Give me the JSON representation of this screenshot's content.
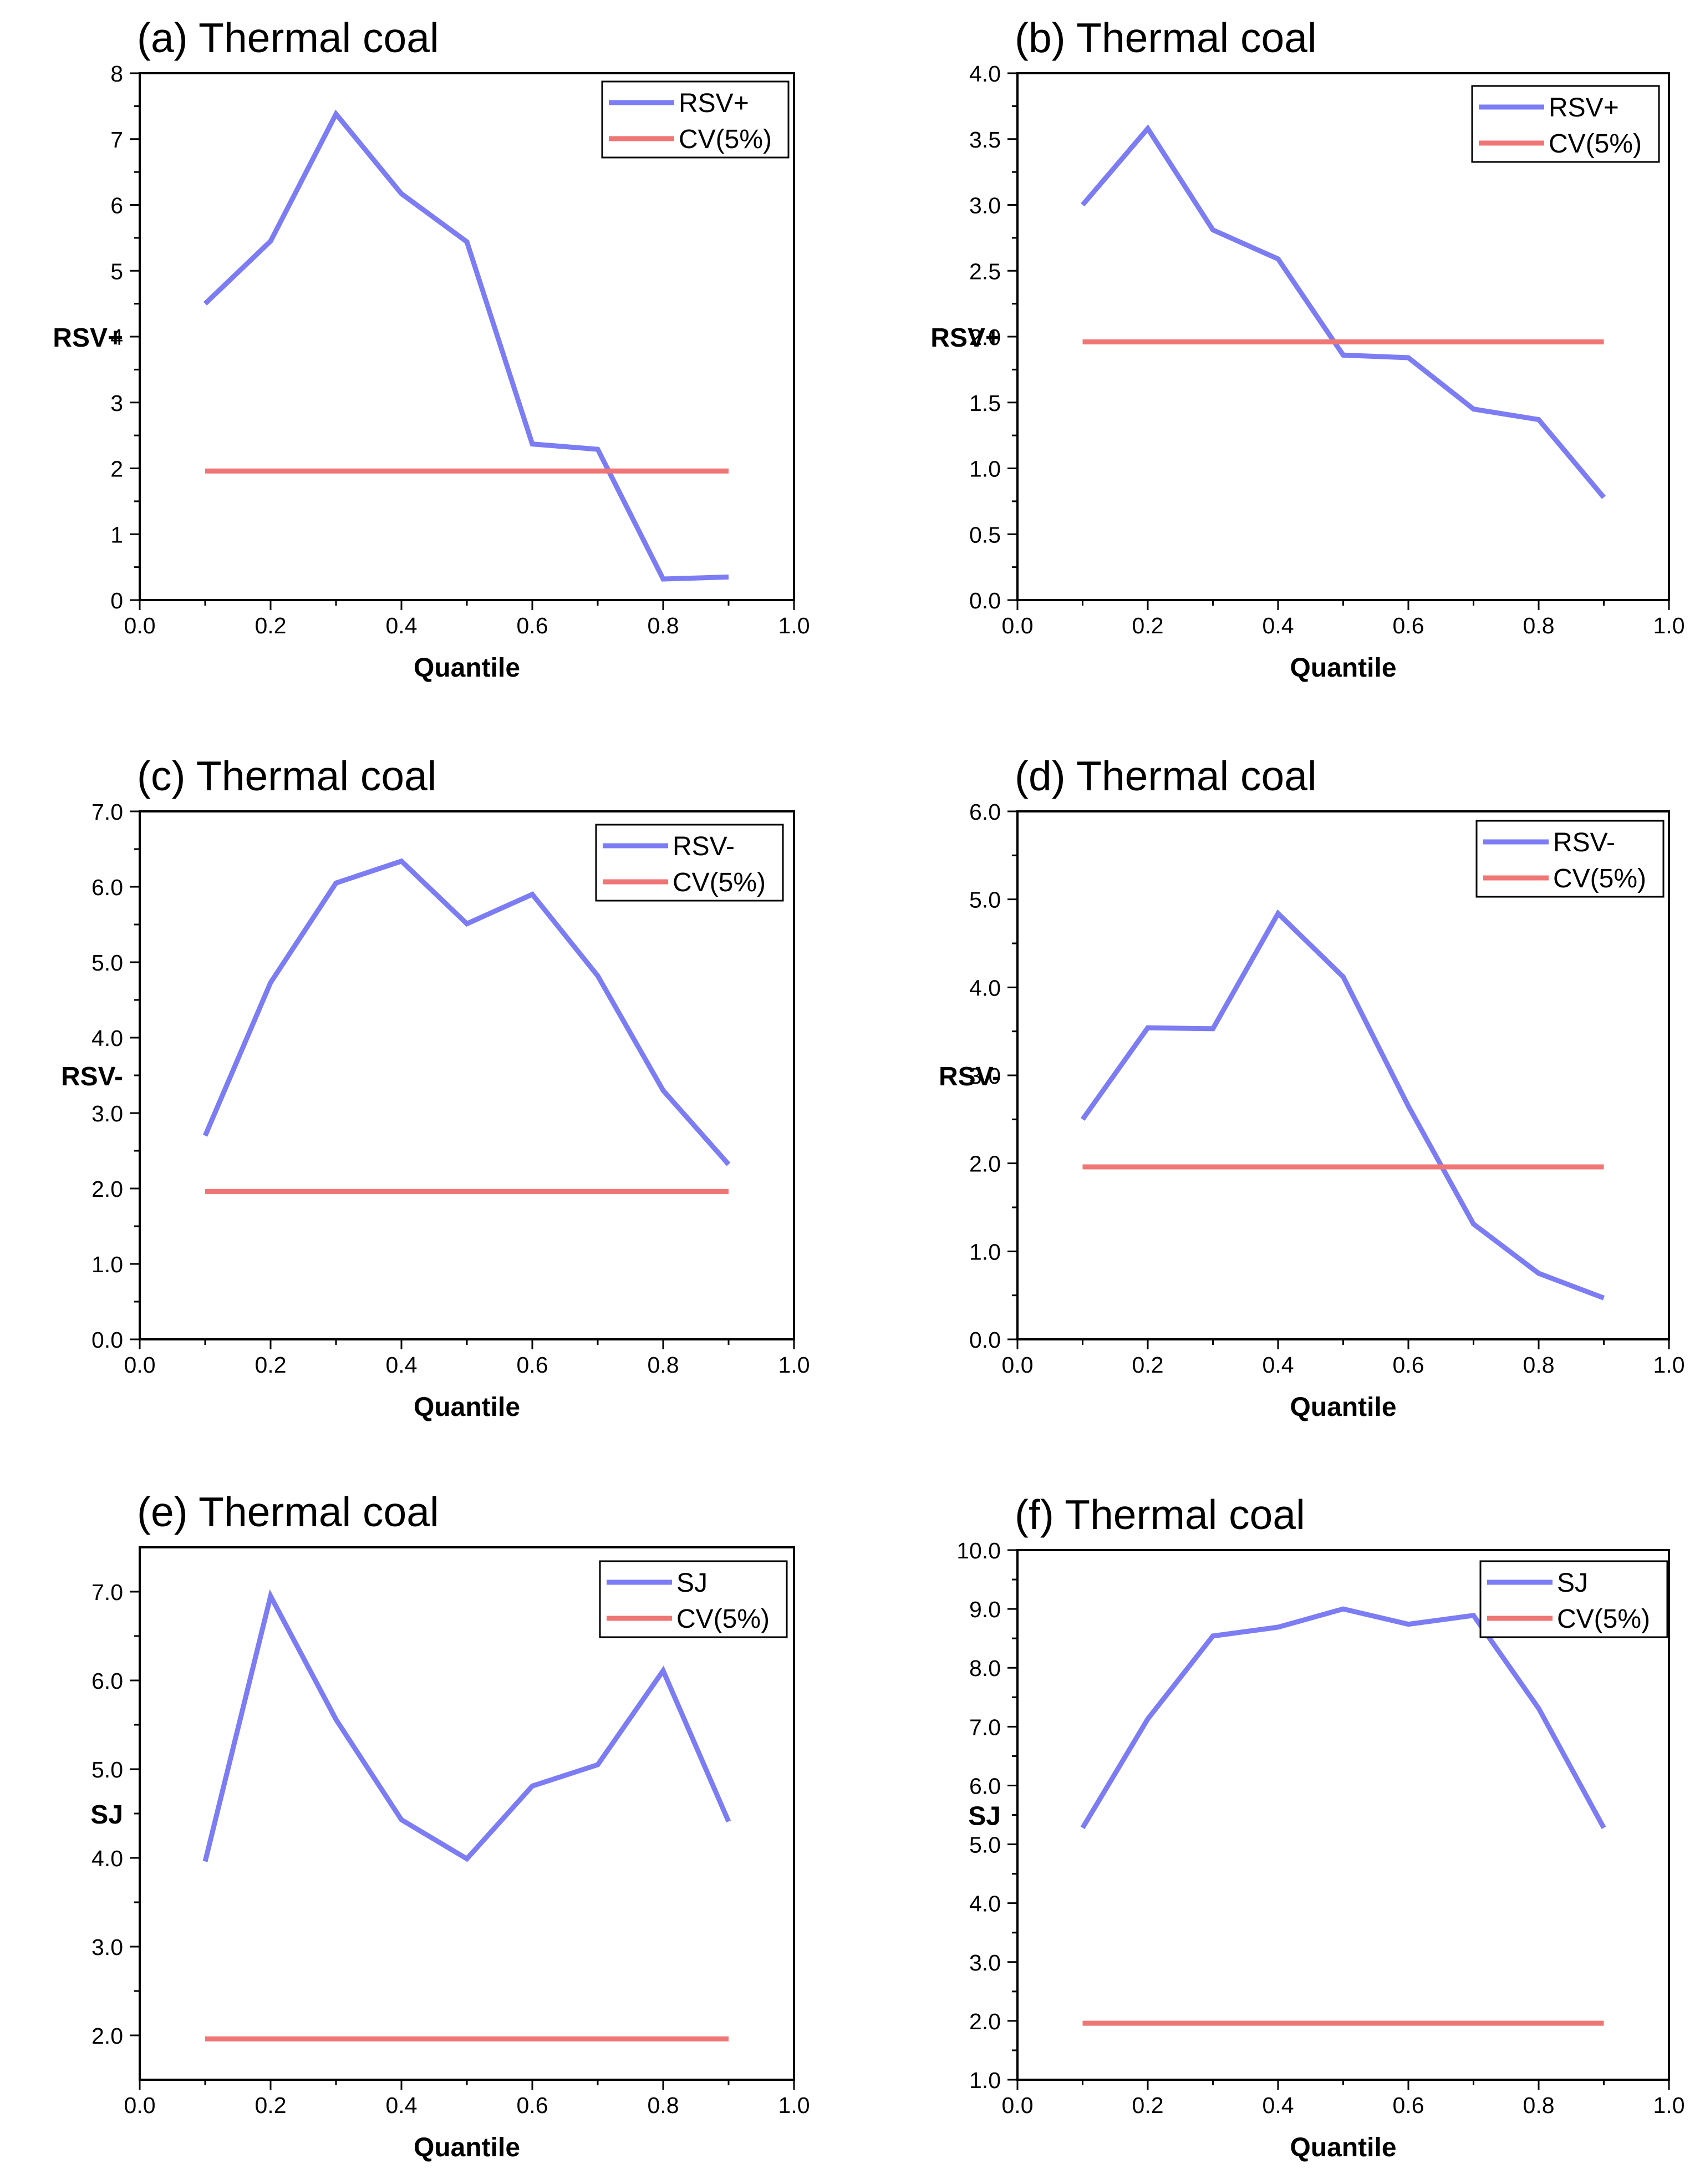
{
  "colors": {
    "series": "#7C7CF4",
    "cv": "#F07575",
    "axis": "#000000",
    "background": "#FFFFFF"
  },
  "chart_data": [
    {
      "id": "a",
      "type": "line",
      "title": "(a) Thermal coal",
      "xlabel": "Quantile",
      "ylabel": "RSV+",
      "xlim": [
        0,
        1
      ],
      "ylim": [
        0,
        8
      ],
      "xticks": [
        0,
        0.2,
        0.4,
        0.6,
        0.8,
        1.0
      ],
      "xtick_labels": [
        "0.0",
        "0.2",
        "0.4",
        "0.6",
        "0.8",
        "1.0"
      ],
      "yticks": [
        0,
        1,
        2,
        3,
        4,
        5,
        6,
        7,
        8
      ],
      "ytick_labels": [
        "0",
        "1",
        "2",
        "3",
        "4",
        "5",
        "6",
        "7",
        "8"
      ],
      "ytick_minor": true,
      "x": [
        0.1,
        0.2,
        0.3,
        0.4,
        0.5,
        0.6,
        0.7,
        0.8,
        0.9
      ],
      "series": [
        {
          "name": "RSV+",
          "color": "#7C7CF4",
          "values": [
            4.5,
            5.45,
            7.38,
            6.17,
            5.44,
            2.37,
            2.29,
            0.32,
            0.35
          ]
        },
        {
          "name": "CV(5%)",
          "color": "#F07575",
          "values": [
            1.96,
            1.96,
            1.96,
            1.96,
            1.96,
            1.96,
            1.96,
            1.96,
            1.96
          ]
        }
      ],
      "legend": "top-right"
    },
    {
      "id": "b",
      "type": "line",
      "title": "(b) Thermal coal",
      "xlabel": "Quantile",
      "ylabel": "RSV+",
      "xlim": [
        0,
        1
      ],
      "ylim": [
        0,
        4
      ],
      "xticks": [
        0,
        0.2,
        0.4,
        0.6,
        0.8,
        1.0
      ],
      "xtick_labels": [
        "0.0",
        "0.2",
        "0.4",
        "0.6",
        "0.8",
        "1.0"
      ],
      "yticks": [
        0,
        0.5,
        1.0,
        1.5,
        2.0,
        2.5,
        3.0,
        3.5,
        4.0
      ],
      "ytick_labels": [
        "0.0",
        "0.5",
        "1.0",
        "1.5",
        "2.0",
        "2.5",
        "3.0",
        "3.5",
        "4.0"
      ],
      "ytick_minor": true,
      "x": [
        0.1,
        0.2,
        0.3,
        0.4,
        0.5,
        0.6,
        0.7,
        0.8,
        0.9
      ],
      "series": [
        {
          "name": "RSV+",
          "color": "#7C7CF4",
          "values": [
            3.0,
            3.58,
            2.81,
            2.59,
            1.86,
            1.84,
            1.45,
            1.37,
            0.78
          ]
        },
        {
          "name": "CV(5%)",
          "color": "#F07575",
          "values": [
            1.96,
            1.96,
            1.96,
            1.96,
            1.96,
            1.96,
            1.96,
            1.96,
            1.96
          ]
        }
      ],
      "legend": "top-right"
    },
    {
      "id": "c",
      "type": "line",
      "title": "(c) Thermal coal",
      "xlabel": "Quantile",
      "ylabel": "RSV-",
      "xlim": [
        0,
        1
      ],
      "ylim": [
        0,
        7
      ],
      "xticks": [
        0,
        0.2,
        0.4,
        0.6,
        0.8,
        1.0
      ],
      "xtick_labels": [
        "0.0",
        "0.2",
        "0.4",
        "0.6",
        "0.8",
        "1.0"
      ],
      "yticks": [
        0,
        1,
        2,
        3,
        4,
        5,
        6,
        7
      ],
      "ytick_labels": [
        "0.0",
        "1.0",
        "2.0",
        "3.0",
        "4.0",
        "5.0",
        "6.0",
        "7.0"
      ],
      "ytick_minor": true,
      "x": [
        0.1,
        0.2,
        0.3,
        0.4,
        0.5,
        0.6,
        0.7,
        0.8,
        0.9
      ],
      "series": [
        {
          "name": "RSV-",
          "color": "#7C7CF4",
          "values": [
            2.7,
            4.73,
            6.05,
            6.34,
            5.51,
            5.9,
            4.82,
            3.3,
            2.32
          ]
        },
        {
          "name": "CV(5%)",
          "color": "#F07575",
          "values": [
            1.96,
            1.96,
            1.96,
            1.96,
            1.96,
            1.96,
            1.96,
            1.96,
            1.96
          ]
        }
      ],
      "legend": "top-right"
    },
    {
      "id": "d",
      "type": "line",
      "title": "(d) Thermal coal",
      "xlabel": "Quantile",
      "ylabel": "RSV-",
      "xlim": [
        0,
        1
      ],
      "ylim": [
        0,
        6
      ],
      "xticks": [
        0,
        0.2,
        0.4,
        0.6,
        0.8,
        1.0
      ],
      "xtick_labels": [
        "0.0",
        "0.2",
        "0.4",
        "0.6",
        "0.8",
        "1.0"
      ],
      "yticks": [
        0,
        1,
        2,
        3,
        4,
        5,
        6
      ],
      "ytick_labels": [
        "0.0",
        "1.0",
        "2.0",
        "3.0",
        "4.0",
        "5.0",
        "6.0"
      ],
      "ytick_minor": true,
      "x": [
        0.1,
        0.2,
        0.3,
        0.4,
        0.5,
        0.6,
        0.7,
        0.8,
        0.9
      ],
      "series": [
        {
          "name": "RSV-",
          "color": "#7C7CF4",
          "values": [
            2.5,
            3.54,
            3.53,
            4.84,
            4.12,
            2.65,
            1.31,
            0.75,
            0.47
          ]
        },
        {
          "name": "CV(5%)",
          "color": "#F07575",
          "values": [
            1.96,
            1.96,
            1.96,
            1.96,
            1.96,
            1.96,
            1.96,
            1.96,
            1.96
          ]
        }
      ],
      "legend": "top-right"
    },
    {
      "id": "e",
      "type": "line",
      "title": "(e) Thermal coal",
      "xlabel": "Quantile",
      "ylabel": "SJ",
      "xlim": [
        0,
        1
      ],
      "ylim": [
        1.5,
        7.5
      ],
      "xticks": [
        0,
        0.2,
        0.4,
        0.6,
        0.8,
        1.0
      ],
      "xtick_labels": [
        "0.0",
        "0.2",
        "0.4",
        "0.6",
        "0.8",
        "1.0"
      ],
      "yticks": [
        2,
        3,
        4,
        5,
        6,
        7
      ],
      "ytick_labels": [
        "2.0",
        "3.0",
        "4.0",
        "5.0",
        "6.0",
        "7.0"
      ],
      "ytick_minor": true,
      "x": [
        0.1,
        0.2,
        0.3,
        0.4,
        0.5,
        0.6,
        0.7,
        0.8,
        0.9
      ],
      "series": [
        {
          "name": "SJ",
          "color": "#7C7CF4",
          "values": [
            3.96,
            6.95,
            5.56,
            4.43,
            3.99,
            4.81,
            5.05,
            6.11,
            4.41
          ]
        },
        {
          "name": "CV(5%)",
          "color": "#F07575",
          "values": [
            1.96,
            1.96,
            1.96,
            1.96,
            1.96,
            1.96,
            1.96,
            1.96,
            1.96
          ]
        }
      ],
      "legend": "top-right"
    },
    {
      "id": "f",
      "type": "line",
      "title": "(f) Thermal coal",
      "xlabel": "Quantile",
      "ylabel": "SJ",
      "xlim": [
        0,
        1
      ],
      "ylim": [
        1,
        10
      ],
      "xticks": [
        0,
        0.2,
        0.4,
        0.6,
        0.8,
        1.0
      ],
      "xtick_labels": [
        "0.0",
        "0.2",
        "0.4",
        "0.6",
        "0.8",
        "1.0"
      ],
      "yticks": [
        1,
        2,
        3,
        4,
        5,
        6,
        7,
        8,
        9,
        10
      ],
      "ytick_labels": [
        "1.0",
        "2.0",
        "3.0",
        "4.0",
        "5.0",
        "6.0",
        "7.0",
        "8.0",
        "9.0",
        "10.0"
      ],
      "ytick_minor": true,
      "x": [
        0.1,
        0.2,
        0.3,
        0.4,
        0.5,
        0.6,
        0.7,
        0.8,
        0.9
      ],
      "series": [
        {
          "name": "SJ",
          "color": "#7C7CF4",
          "values": [
            5.28,
            7.13,
            8.54,
            8.69,
            9.0,
            8.74,
            8.89,
            7.31,
            5.28
          ]
        },
        {
          "name": "CV(5%)",
          "color": "#F07575",
          "values": [
            1.96,
            1.96,
            1.96,
            1.96,
            1.96,
            1.96,
            1.96,
            1.96,
            1.96
          ]
        }
      ],
      "legend": "top-right"
    }
  ]
}
